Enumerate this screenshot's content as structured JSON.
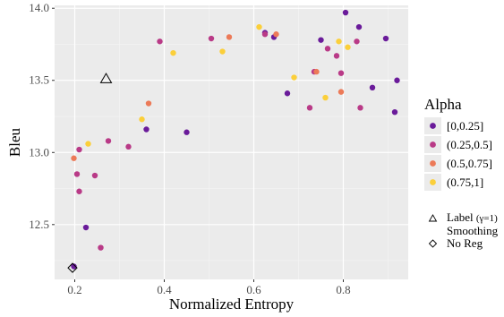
{
  "chart_data": {
    "type": "scatter",
    "xlabel": "Normalized Entropy",
    "ylabel": "Bleu",
    "xlim": [
      0.155,
      0.945
    ],
    "ylim": [
      12.12,
      14.02
    ],
    "x_ticks": [
      0.2,
      0.4,
      0.6,
      0.8
    ],
    "x_tick_labels": [
      "0.2",
      "0.4",
      "0.6",
      "0.8"
    ],
    "y_ticks": [
      12.5,
      13.0,
      13.5,
      14.0
    ],
    "y_tick_labels": [
      "12.5",
      "13.0",
      "13.5",
      "14.0"
    ],
    "grid": true,
    "legend": {
      "title": "Alpha",
      "placement": "right",
      "entries": [
        {
          "label": "[0,0.25]",
          "color": "#6a1b9a"
        },
        {
          "label": "(0.25,0.5]",
          "color": "#b93a87"
        },
        {
          "label": "(0.5,0.75]",
          "color": "#ec7a58"
        },
        {
          "label": "(0.75,1]",
          "color": "#fbcf3a"
        }
      ],
      "shape_entries": [
        {
          "label_main": "Label",
          "label_suffix": "(γ=1)",
          "label_line2": "Smoothing",
          "shape": "triangle"
        },
        {
          "label_main": "No Reg",
          "shape": "diamond"
        }
      ]
    },
    "series": [
      {
        "name": "[0,0.25]",
        "color": "#6a1b9a",
        "points": [
          [
            0.198,
            12.21
          ],
          [
            0.225,
            12.48
          ],
          [
            0.36,
            13.16
          ],
          [
            0.45,
            13.14
          ],
          [
            0.625,
            13.83
          ],
          [
            0.645,
            13.8
          ],
          [
            0.675,
            13.41
          ],
          [
            0.75,
            13.78
          ],
          [
            0.805,
            13.97
          ],
          [
            0.835,
            13.87
          ],
          [
            0.865,
            13.45
          ],
          [
            0.895,
            13.79
          ],
          [
            0.915,
            13.28
          ],
          [
            0.92,
            13.5
          ]
        ]
      },
      {
        "name": "(0.25,0.5]",
        "color": "#b93a87",
        "points": [
          [
            0.205,
            12.85
          ],
          [
            0.21,
            12.73
          ],
          [
            0.21,
            13.02
          ],
          [
            0.245,
            12.84
          ],
          [
            0.258,
            12.34
          ],
          [
            0.275,
            13.08
          ],
          [
            0.32,
            13.04
          ],
          [
            0.39,
            13.77
          ],
          [
            0.505,
            13.79
          ],
          [
            0.625,
            13.82
          ],
          [
            0.725,
            13.31
          ],
          [
            0.735,
            13.56
          ],
          [
            0.765,
            13.72
          ],
          [
            0.785,
            13.67
          ],
          [
            0.795,
            13.55
          ],
          [
            0.83,
            13.77
          ],
          [
            0.838,
            13.31
          ]
        ]
      },
      {
        "name": "(0.5,0.75]",
        "color": "#ec7a58",
        "points": [
          [
            0.198,
            12.96
          ],
          [
            0.365,
            13.34
          ],
          [
            0.545,
            13.8
          ],
          [
            0.65,
            13.82
          ],
          [
            0.74,
            13.56
          ],
          [
            0.795,
            13.42
          ]
        ]
      },
      {
        "name": "(0.75,1]",
        "color": "#fbcf3a",
        "points": [
          [
            0.23,
            13.06
          ],
          [
            0.35,
            13.23
          ],
          [
            0.42,
            13.69
          ],
          [
            0.53,
            13.7
          ],
          [
            0.612,
            13.87
          ],
          [
            0.69,
            13.52
          ],
          [
            0.76,
            13.38
          ],
          [
            0.79,
            13.77
          ],
          [
            0.81,
            13.73
          ]
        ]
      }
    ],
    "markers": [
      {
        "shape": "triangle",
        "x": 0.27,
        "y": 13.51
      },
      {
        "shape": "diamond",
        "x": 0.195,
        "y": 12.2
      }
    ]
  }
}
